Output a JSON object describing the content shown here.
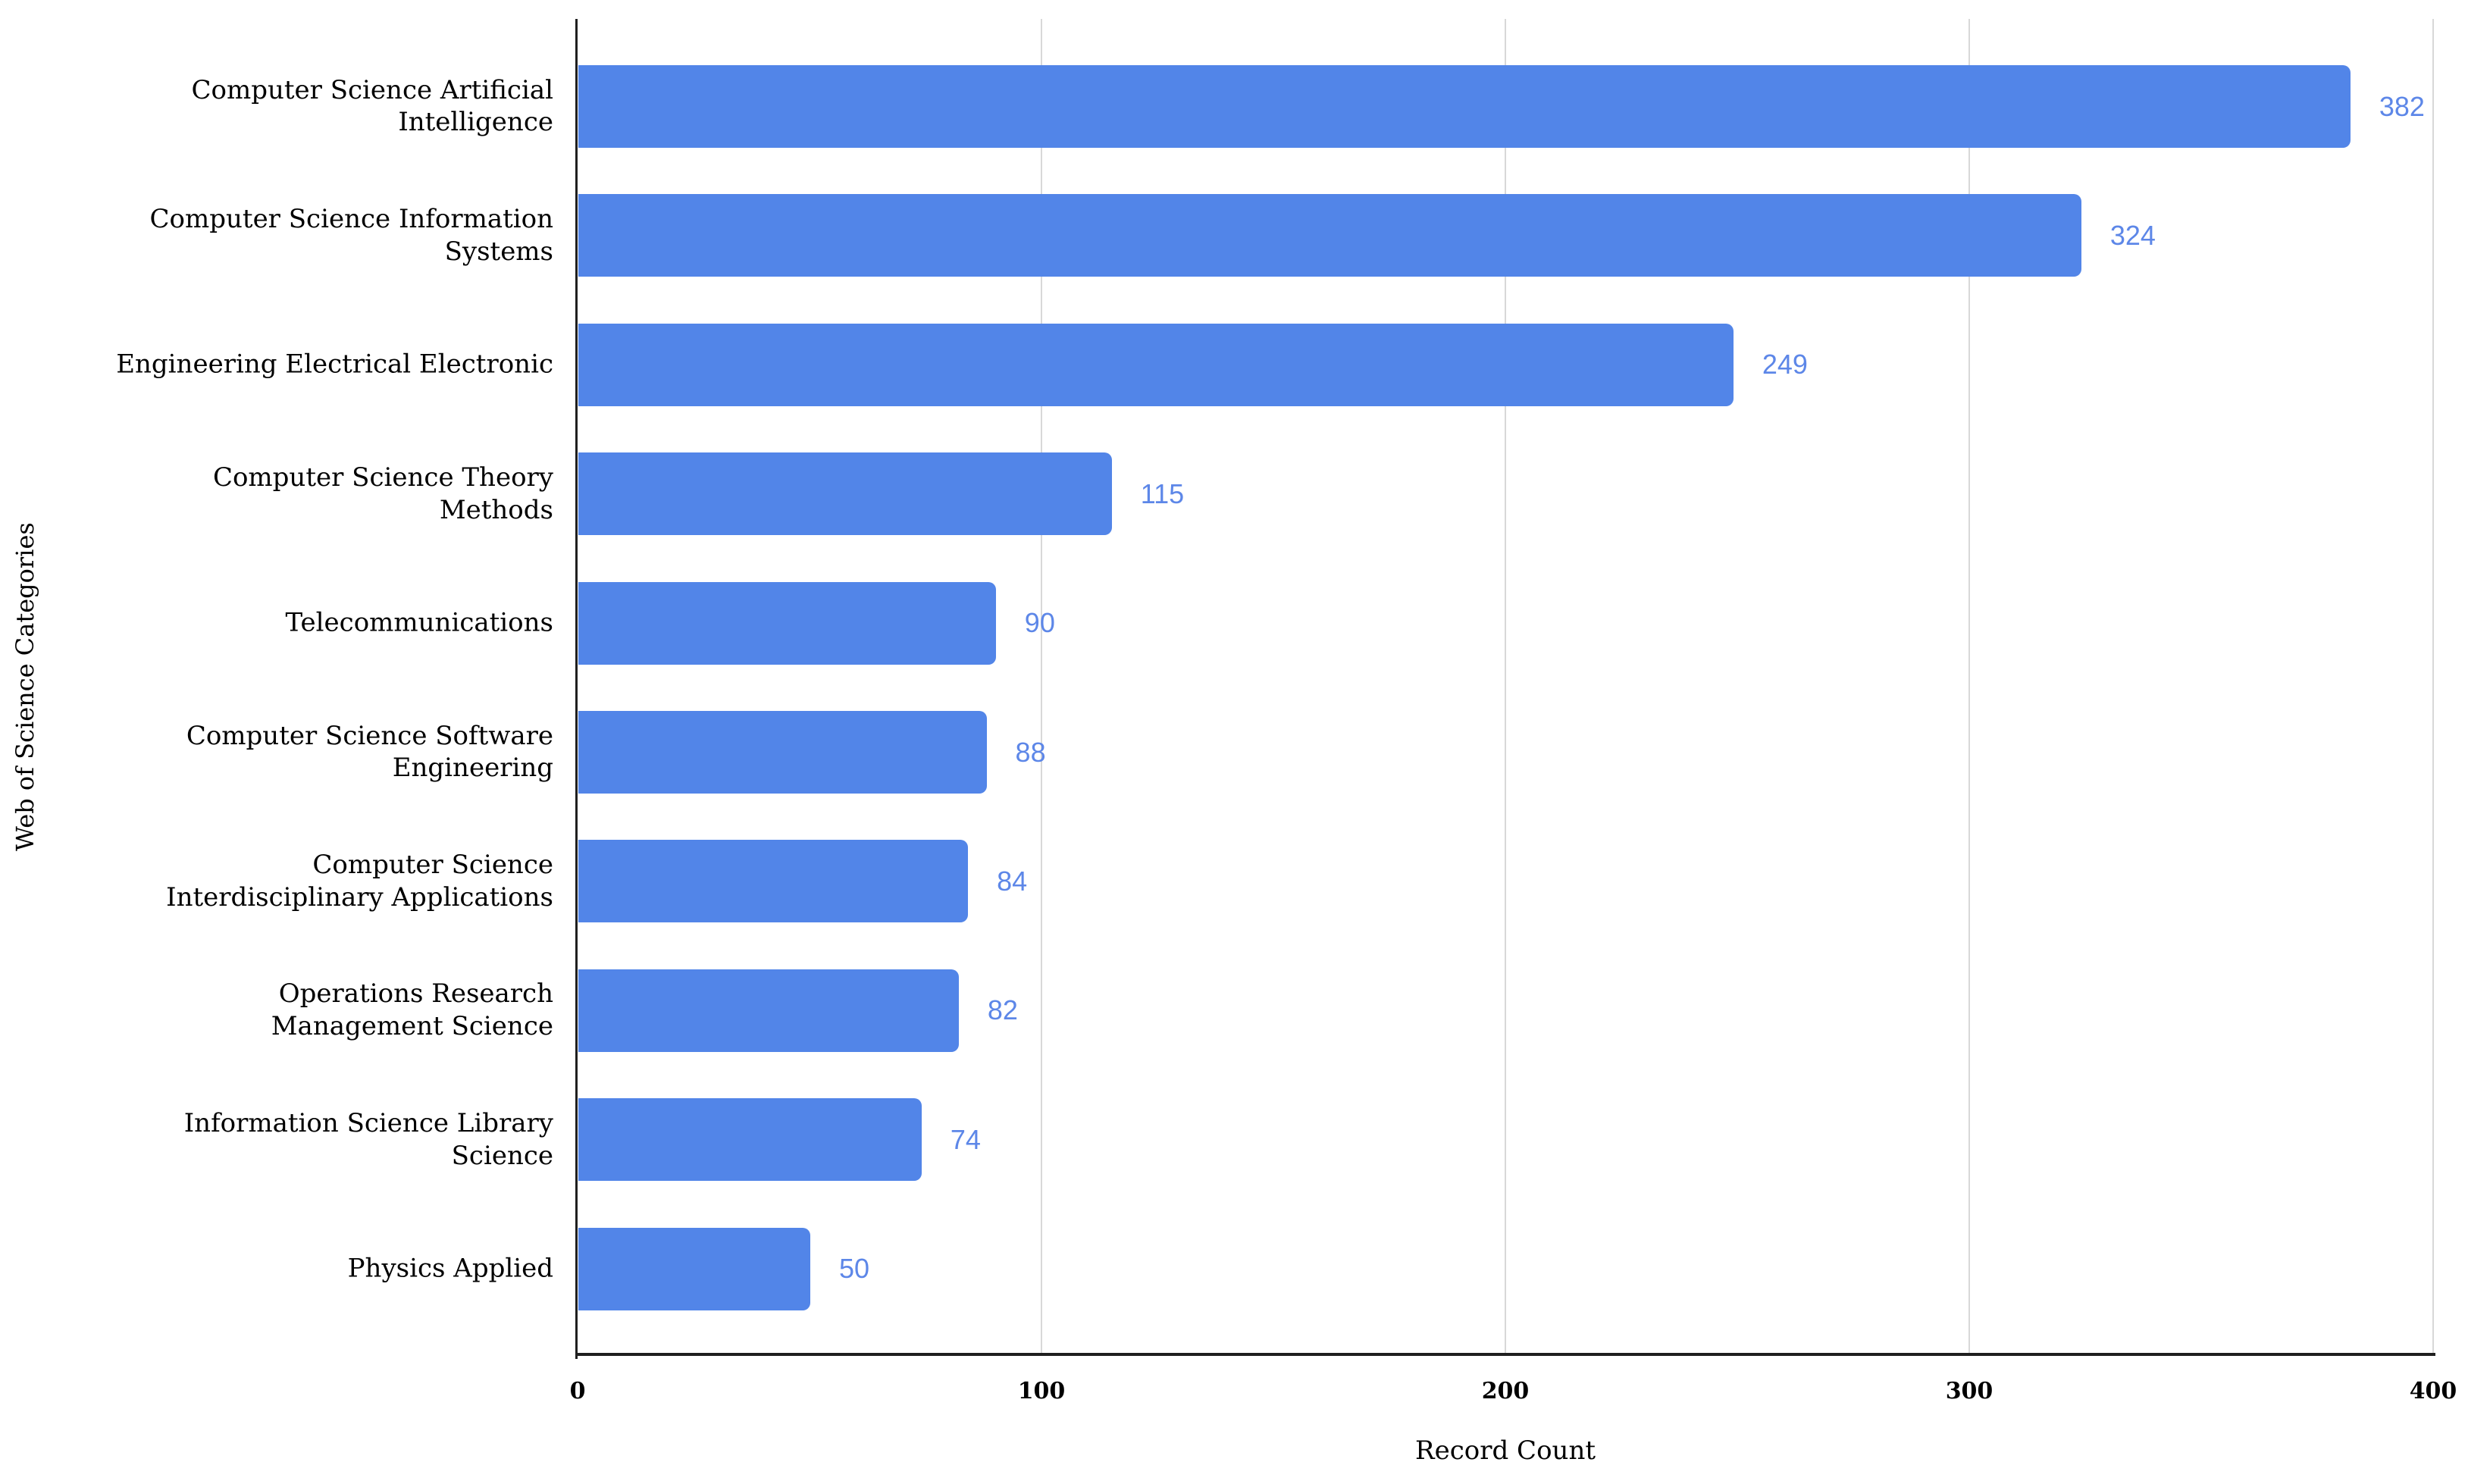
{
  "chart_data": {
    "type": "bar",
    "orientation": "horizontal",
    "title": "",
    "xlabel": "Record Count",
    "ylabel": "Web of Science Categories",
    "xlim": [
      0,
      400
    ],
    "xticks": [
      0,
      100,
      200,
      300,
      400
    ],
    "grid": true,
    "legend": "none",
    "bar_color": "#5285e8",
    "annotation_color": "#5d87e8",
    "gridline_color": "#d8d8d8",
    "axis_line_color": "#1f1f1f",
    "categories": [
      "Computer Science Artificial Intelligence",
      "Computer Science Information Systems",
      "Engineering Electrical Electronic",
      "Computer Science Theory Methods",
      "Telecommunications",
      "Computer Science Software Engineering",
      "Computer Science Interdisciplinary Applications",
      "Operations Research Management Science",
      "Information Science Library Science",
      "Physics Applied"
    ],
    "category_display_lines": [
      [
        "Computer Science Artificial",
        "Intelligence"
      ],
      [
        "Computer Science Information",
        "Systems"
      ],
      [
        "Engineering Electrical Electronic"
      ],
      [
        "Computer Science Theory",
        "Methods"
      ],
      [
        "Telecommunications"
      ],
      [
        "Computer Science Software",
        "Engineering"
      ],
      [
        "Computer Science",
        "Interdisciplinary Applications"
      ],
      [
        "Operations Research",
        "Management Science"
      ],
      [
        "Information Science Library",
        "Science"
      ],
      [
        "Physics Applied"
      ]
    ],
    "values": [
      382,
      324,
      249,
      115,
      90,
      88,
      84,
      82,
      74,
      50
    ]
  }
}
